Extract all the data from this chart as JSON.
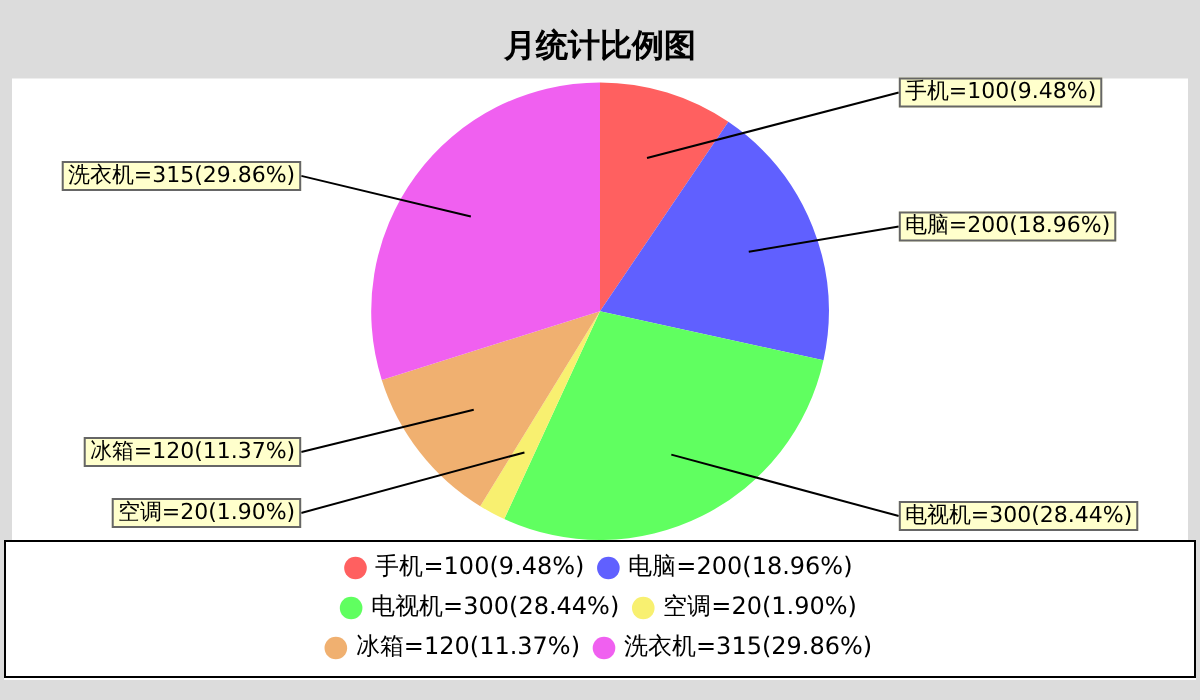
{
  "chart_data": {
    "type": "pie",
    "title": "月统计比例图",
    "categories": [
      "手机=100(9.48%)",
      "电脑=200(18.96%)",
      "电视机=300(28.44%)",
      "空调=20(1.90%)",
      "冰箱=120(11.37%)",
      "洗衣机=315(29.86%)"
    ],
    "values": [
      100,
      200,
      300,
      20,
      120,
      315
    ],
    "colors": [
      "#ff6060",
      "#6060ff",
      "#60ff60",
      "#f8f070",
      "#f0b070",
      "#f060f0"
    ],
    "legend": "bottom"
  }
}
